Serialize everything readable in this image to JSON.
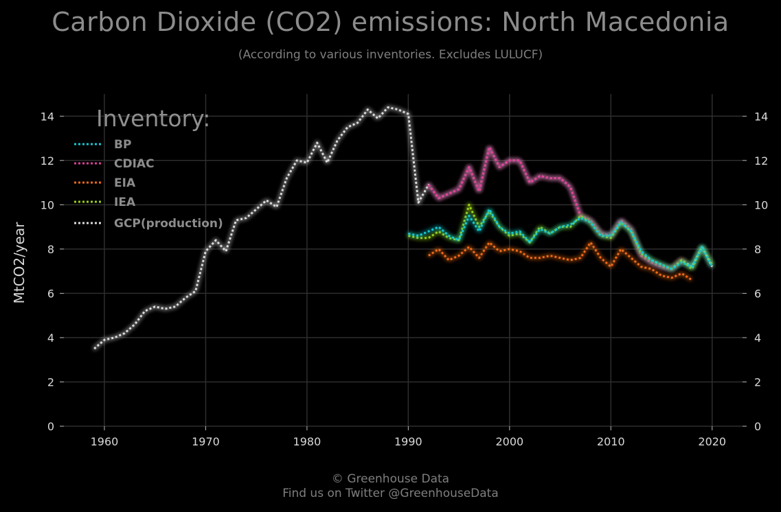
{
  "title": "Carbon Dioxide (CO2) emissions: North Macedonia",
  "subtitle": "(According to various inventories. Excludes LULUCF)",
  "footer": {
    "line1": "© Greenhouse Data",
    "line2": "Find us on Twitter @GreenhouseData"
  },
  "chart_data": {
    "type": "line",
    "title": "Carbon Dioxide (CO2) emissions: North Macedonia",
    "subtitle": "(According to various inventories. Excludes LULUCF)",
    "ylabel": "MtCO2/year",
    "xlabel": "",
    "xlim": [
      1956,
      2023
    ],
    "ylim": [
      0,
      15
    ],
    "xticks": [
      1960,
      1970,
      1980,
      1990,
      2000,
      2010,
      2020
    ],
    "yticks": [
      0,
      2,
      4,
      6,
      8,
      10,
      12,
      14
    ],
    "grid": true,
    "line_style": "dotted",
    "legend": {
      "title": "Inventory:",
      "position": "top-left"
    },
    "series": [
      {
        "name": "BP",
        "color": "#16c8d4",
        "x": [
          1990,
          1991,
          1992,
          1993,
          1994,
          1995,
          1996,
          1997,
          1998,
          1999,
          2000,
          2001,
          2002,
          2003,
          2004,
          2005,
          2006,
          2007,
          2008,
          2009,
          2010,
          2011,
          2012,
          2013,
          2014,
          2015,
          2016,
          2017,
          2018,
          2019,
          2020
        ],
        "values": [
          8.7,
          8.6,
          8.8,
          9.0,
          8.6,
          8.4,
          9.5,
          8.8,
          9.8,
          9.0,
          8.7,
          8.8,
          8.3,
          8.9,
          8.7,
          9.0,
          9.1,
          9.4,
          9.2,
          8.6,
          8.6,
          9.2,
          8.8,
          7.9,
          7.5,
          7.3,
          7.1,
          7.4,
          7.2,
          8.1,
          7.2
        ]
      },
      {
        "name": "CDIAC",
        "color": "#e0409a",
        "x": [
          1992,
          1993,
          1994,
          1995,
          1996,
          1997,
          1998,
          1999,
          2000,
          2001,
          2002,
          2003,
          2004,
          2005,
          2006,
          2007,
          2008,
          2009,
          2010,
          2011,
          2012,
          2013,
          2014,
          2015,
          2016,
          2017
        ],
        "values": [
          10.9,
          10.3,
          10.5,
          10.7,
          11.7,
          10.6,
          12.6,
          11.7,
          12.0,
          12.0,
          11.0,
          11.3,
          11.2,
          11.2,
          10.8,
          9.5,
          9.3,
          8.7,
          8.6,
          9.3,
          8.9,
          7.7,
          7.4,
          7.2,
          7.1,
          7.5
        ]
      },
      {
        "name": "EIA",
        "color": "#ee6a1a",
        "x": [
          1992,
          1993,
          1994,
          1995,
          1996,
          1997,
          1998,
          1999,
          2000,
          2001,
          2002,
          2003,
          2004,
          2005,
          2006,
          2007,
          2008,
          2009,
          2010,
          2011,
          2012,
          2013,
          2014,
          2015,
          2016,
          2017,
          2018
        ],
        "values": [
          7.7,
          8.0,
          7.5,
          7.7,
          8.1,
          7.6,
          8.3,
          7.9,
          8.0,
          7.9,
          7.6,
          7.6,
          7.7,
          7.6,
          7.5,
          7.6,
          8.3,
          7.6,
          7.2,
          8.0,
          7.6,
          7.2,
          7.1,
          6.8,
          6.7,
          6.9,
          6.6
        ]
      },
      {
        "name": "IEA",
        "color": "#9ad11a",
        "x": [
          1990,
          1991,
          1992,
          1993,
          1994,
          1995,
          1996,
          1997,
          1998,
          1999,
          2000,
          2001,
          2002,
          2003,
          2004,
          2005,
          2006,
          2007,
          2008,
          2009,
          2010,
          2011,
          2012,
          2013,
          2014,
          2015,
          2016,
          2017,
          2018,
          2019,
          2020
        ],
        "values": [
          8.6,
          8.5,
          8.5,
          8.8,
          8.5,
          8.4,
          10.0,
          9.0,
          9.7,
          9.0,
          8.6,
          8.7,
          8.3,
          9.0,
          8.7,
          9.0,
          9.0,
          9.5,
          9.2,
          8.6,
          8.5,
          9.2,
          8.8,
          7.8,
          7.5,
          7.3,
          7.1,
          7.5,
          7.1,
          8.1,
          7.3
        ]
      },
      {
        "name": "GCP(production)",
        "color": "#dcdcdc",
        "x": [
          1959,
          1960,
          1961,
          1962,
          1963,
          1964,
          1965,
          1966,
          1967,
          1968,
          1969,
          1970,
          1971,
          1972,
          1973,
          1974,
          1975,
          1976,
          1977,
          1978,
          1979,
          1980,
          1981,
          1982,
          1983,
          1984,
          1985,
          1986,
          1987,
          1988,
          1989,
          1990,
          1991,
          1992,
          1993,
          1994,
          1995,
          1996,
          1997,
          1998,
          1999,
          2000,
          2001,
          2002,
          2003,
          2004,
          2005,
          2006,
          2007,
          2008,
          2009,
          2010,
          2011,
          2012,
          2013,
          2014,
          2015,
          2016,
          2017,
          2018,
          2019,
          2020
        ],
        "values": [
          3.5,
          3.9,
          4.0,
          4.2,
          4.6,
          5.2,
          5.4,
          5.3,
          5.4,
          5.8,
          6.1,
          7.9,
          8.4,
          7.9,
          9.3,
          9.4,
          9.8,
          10.2,
          9.9,
          11.2,
          12.0,
          11.9,
          12.8,
          11.9,
          12.9,
          13.5,
          13.7,
          14.3,
          13.9,
          14.4,
          14.3,
          14.1,
          10.1,
          10.9,
          10.3,
          10.5,
          10.7,
          11.7,
          10.6,
          12.6,
          11.7,
          12.0,
          12.0,
          11.0,
          11.3,
          11.2,
          11.2,
          10.8,
          9.5,
          9.3,
          8.7,
          8.6,
          9.3,
          8.9,
          7.7,
          7.4,
          7.2,
          7.1,
          7.5,
          7.2,
          8.1,
          7.2
        ]
      }
    ]
  }
}
